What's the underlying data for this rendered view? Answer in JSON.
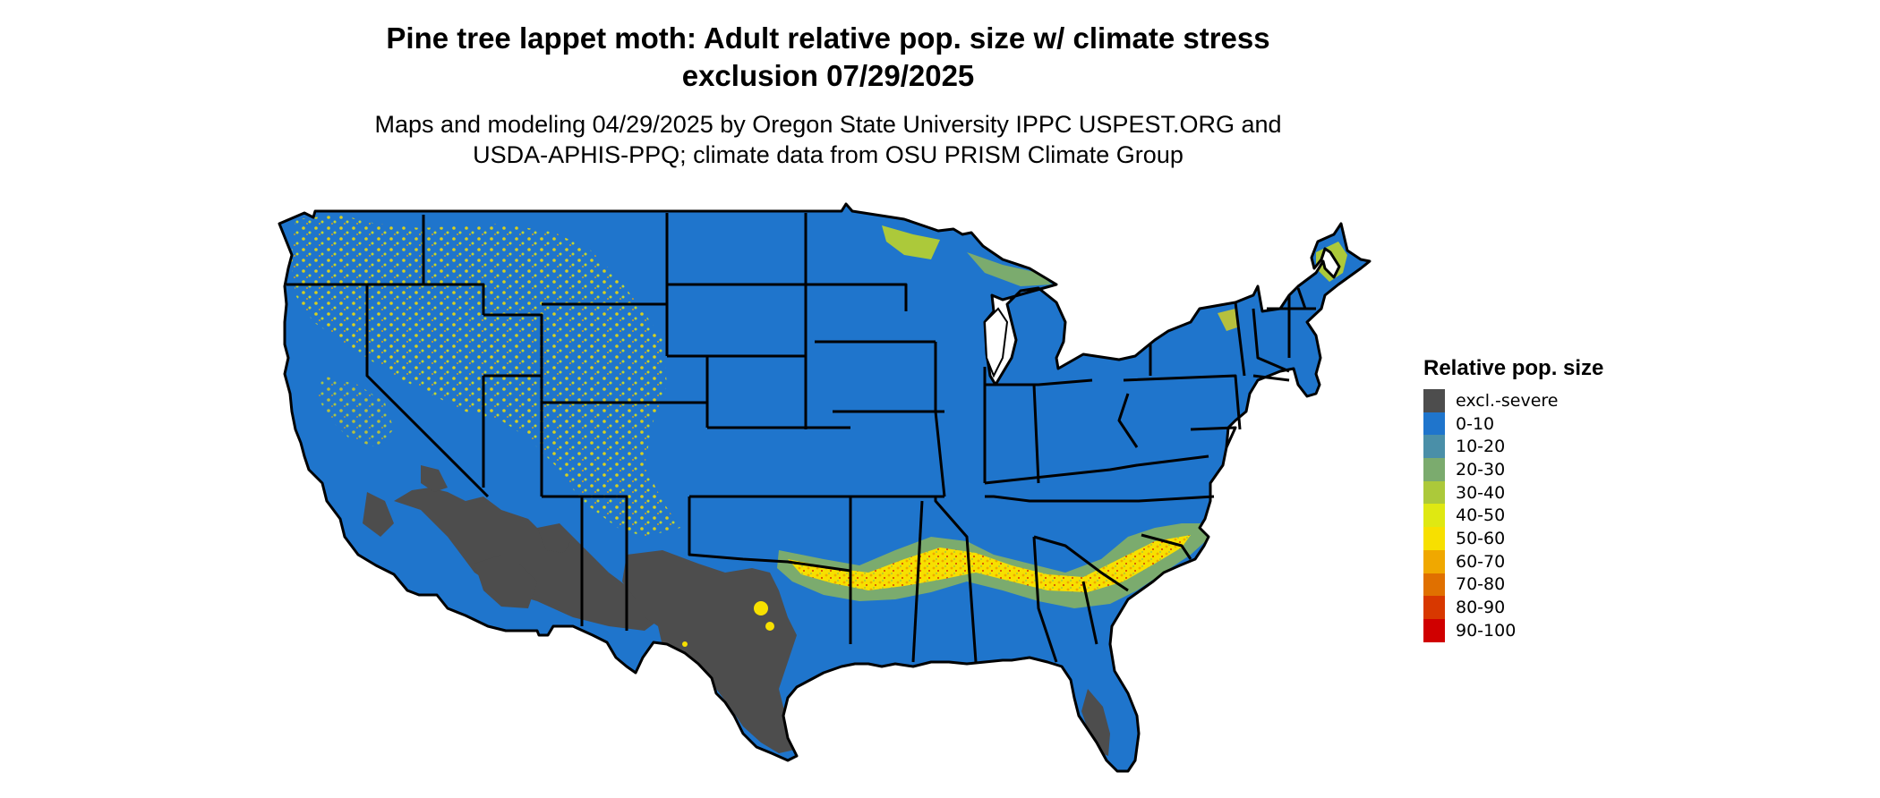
{
  "title": {
    "line1": "Pine tree lappet moth: Adult relative pop. size w/ climate stress",
    "line2": "exclusion 07/29/2025"
  },
  "subtitle": {
    "line1": "Maps and modeling 04/29/2025 by Oregon State University IPPC USPEST.ORG and",
    "line2": "USDA-APHIS-PPQ; climate data from OSU PRISM Climate Group"
  },
  "legend": {
    "title": "Relative pop. size",
    "items": [
      {
        "label": "excl.-severe",
        "color": "#4d4d4d"
      },
      {
        "label": "0-10",
        "color": "#1f75cc"
      },
      {
        "label": "10-20",
        "color": "#4a8fa8"
      },
      {
        "label": "20-30",
        "color": "#7bab6e"
      },
      {
        "label": "30-40",
        "color": "#acc93a"
      },
      {
        "label": "40-50",
        "color": "#dfe812"
      },
      {
        "label": "50-60",
        "color": "#f7e000"
      },
      {
        "label": "60-70",
        "color": "#f0a800"
      },
      {
        "label": "70-80",
        "color": "#e07000"
      },
      {
        "label": "80-90",
        "color": "#d83800"
      },
      {
        "label": "90-100",
        "color": "#d00000"
      }
    ]
  },
  "map": {
    "region": "Contiguous United States",
    "colors": {
      "base": "#1f75cc",
      "excluded": "#4d4d4d",
      "low": "#acc93a",
      "mid": "#f7e000",
      "high": "#f0a800",
      "border": "#000000",
      "water": "#ffffff"
    }
  }
}
